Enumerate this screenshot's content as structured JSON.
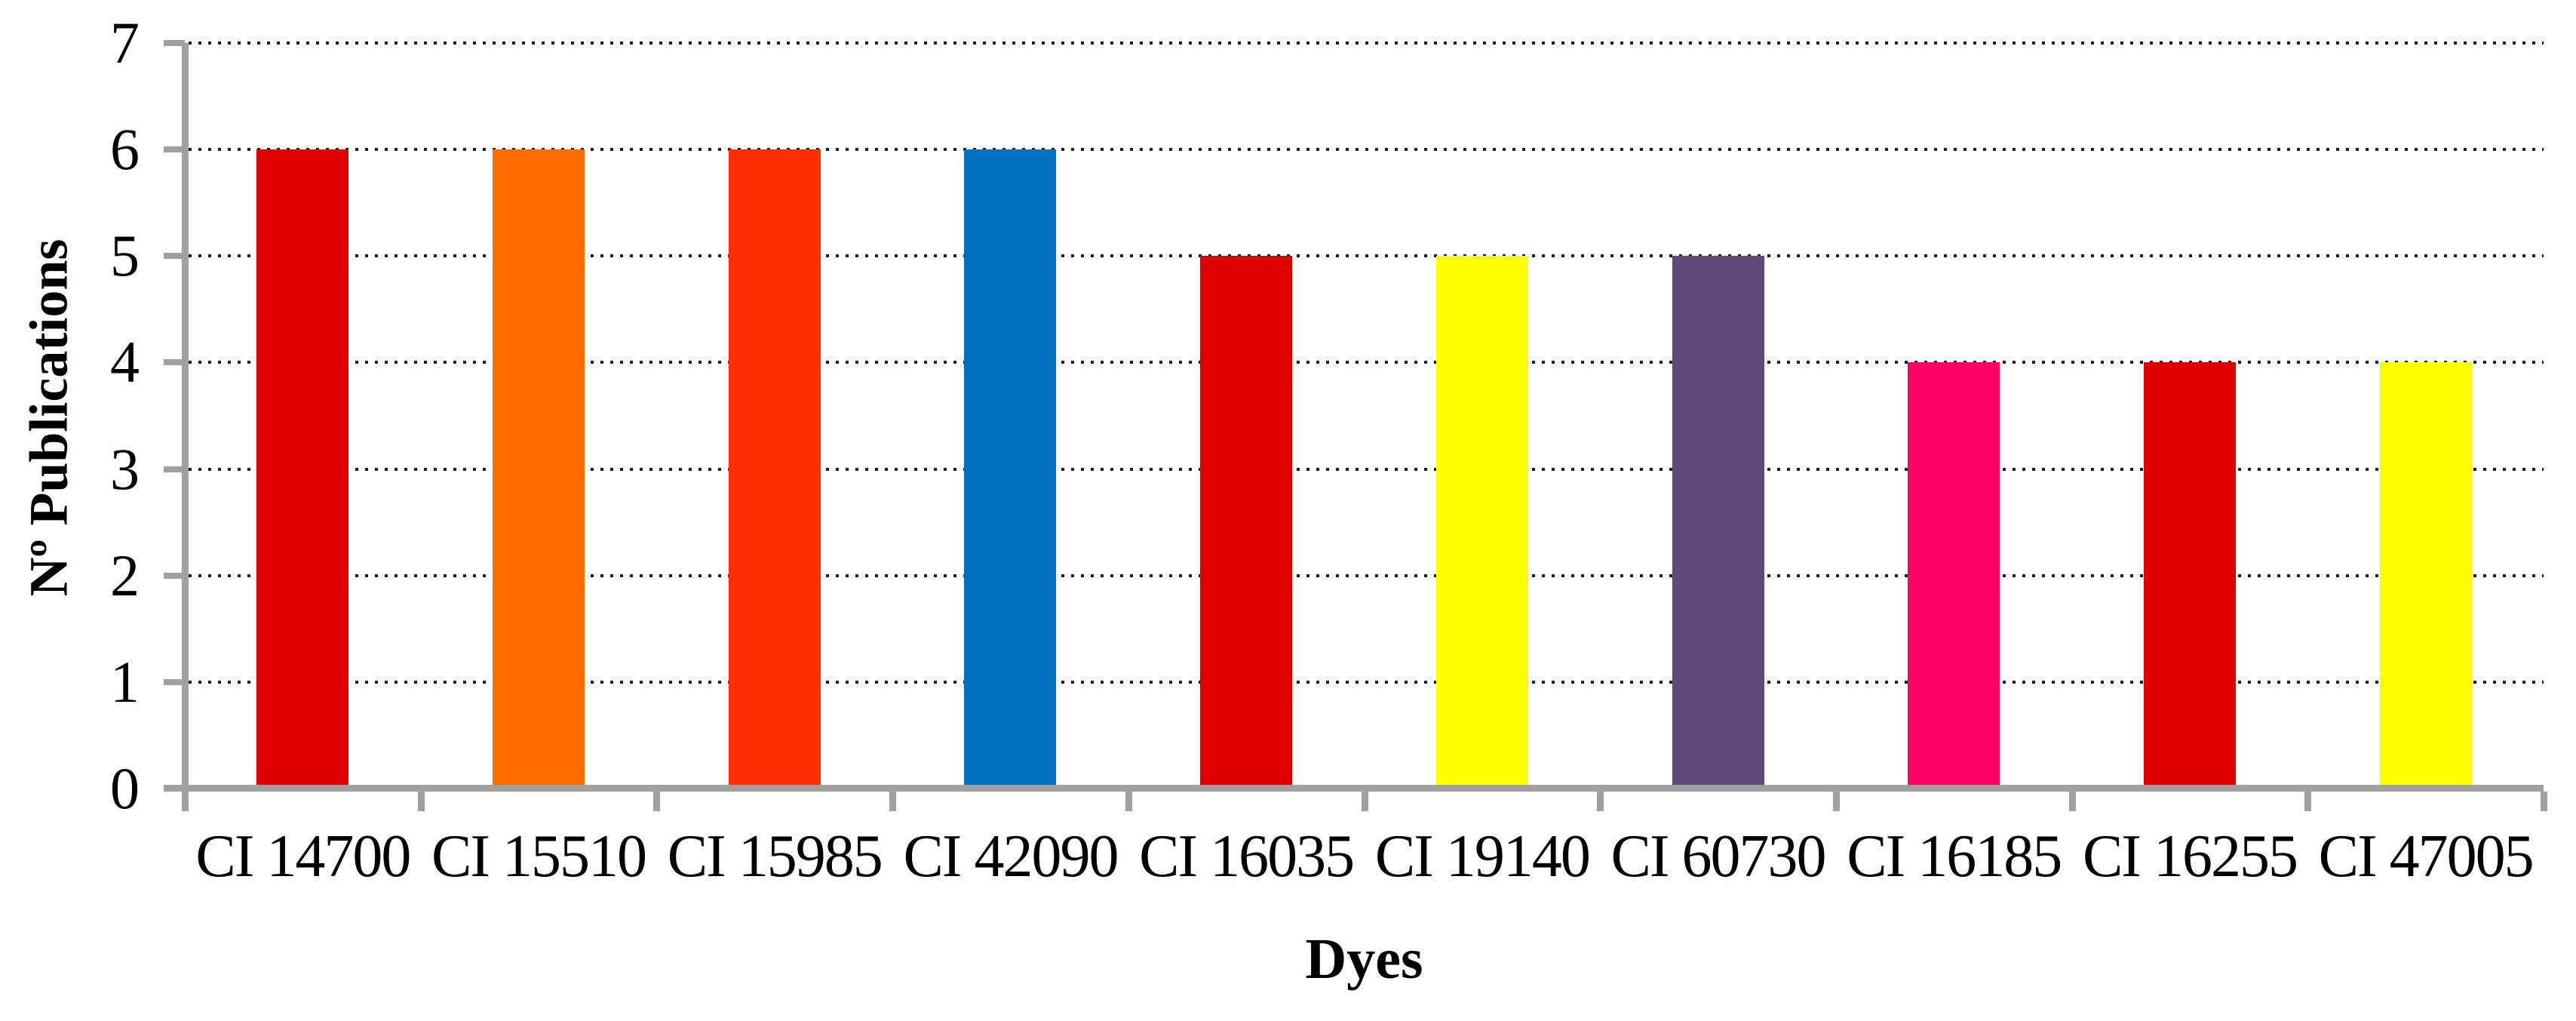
{
  "chart_data": {
    "type": "bar",
    "title": "",
    "xlabel": "Dyes",
    "ylabel": "Nº Publications",
    "categories": [
      "CI 14700",
      "CI 15510",
      "CI 15985",
      "CI 42090",
      "CI 16035",
      "CI 19140",
      "CI 60730",
      "CI 16185",
      "CI 16255",
      "CI 47005"
    ],
    "values": [
      6,
      6,
      6,
      6,
      5,
      5,
      5,
      4,
      4,
      4
    ],
    "bar_colors": [
      "#E00000",
      "#FF6D00",
      "#FF2E00",
      "#0070C0",
      "#E00000",
      "#FFFF00",
      "#604A7B",
      "#FF0066",
      "#E00000",
      "#FFFF00"
    ],
    "ylim": [
      0,
      7
    ],
    "yticks": [
      0,
      1,
      2,
      3,
      4,
      5,
      6,
      7
    ],
    "grid": "horizontal-dotted",
    "legend": "none",
    "colors": {
      "axis": "#A0A0A0",
      "gridline_dots": "#1F1F1F",
      "text": "#000000",
      "background": "#FFFFFF"
    }
  }
}
